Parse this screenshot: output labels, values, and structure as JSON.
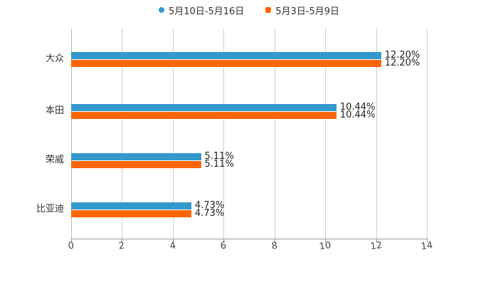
{
  "chart_data": {
    "type": "bar",
    "orientation": "horizontal",
    "title": "",
    "xlabel": "",
    "ylabel": "",
    "categories": [
      "大众",
      "本田",
      "荣威",
      "比亚迪"
    ],
    "series": [
      {
        "name": "5月10日-5月16日",
        "color": "#3399cc",
        "values": [
          12.2,
          10.44,
          5.11,
          4.73
        ],
        "labels": [
          "12.20%",
          "10.44%",
          "5.11%",
          "4.73%"
        ]
      },
      {
        "name": "5月3日-5月9日",
        "color": "#ff6600",
        "values": [
          12.2,
          10.44,
          5.11,
          4.73
        ],
        "labels": [
          "12.20%",
          "10.44%",
          "5.11%",
          "4.73%"
        ]
      }
    ],
    "xlim": [
      0,
      14
    ],
    "xticks": [
      "0",
      "2",
      "4",
      "6",
      "8",
      "10",
      "12",
      "14"
    ],
    "grid": true,
    "legend_position": "top"
  },
  "legend": {
    "item0": "5月10日-5月16日",
    "item1": "5月3日-5月9日"
  }
}
